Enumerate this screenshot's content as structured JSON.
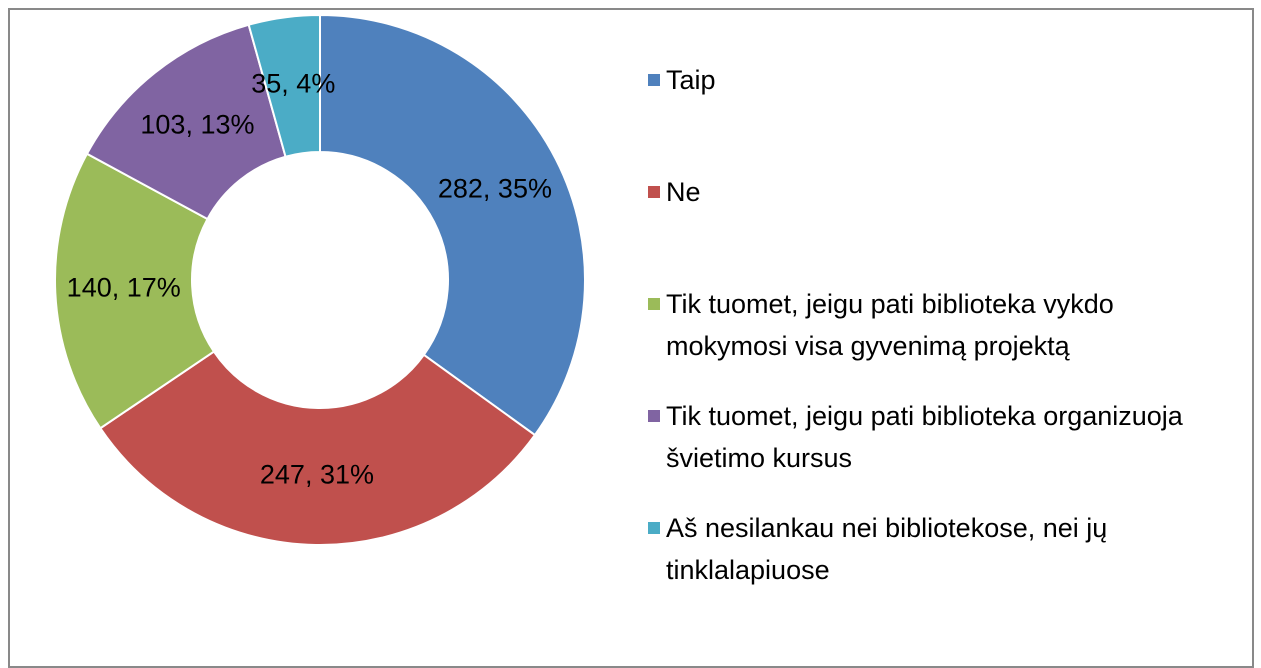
{
  "chart_data": {
    "type": "donut",
    "categories": [
      "Taip",
      "Ne",
      "Tik tuomet, jeigu pati biblioteka vykdo mokymosi visa gyvenimą projektą",
      "Tik tuomet, jeigu pati biblioteka organizuoja švietimo kursus",
      "Aš nesilankau nei bibliotekose, nei jų tinklalapiuose"
    ],
    "values": [
      282,
      247,
      140,
      103,
      35
    ],
    "value_labels": [
      "282, 35%",
      "247, 31%",
      "140, 17%",
      "103, 13%",
      "35, 4%"
    ],
    "colors": [
      "#4f81bd",
      "#c0504d",
      "#9bbb59",
      "#8064a2",
      "#4bacc6"
    ],
    "legend": "right"
  }
}
